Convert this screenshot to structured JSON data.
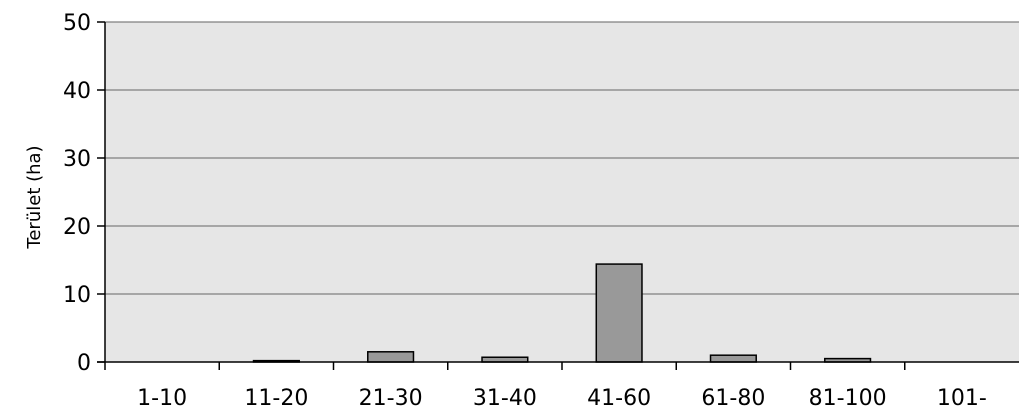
{
  "chart_data": {
    "type": "bar",
    "title": "",
    "xlabel": "",
    "ylabel": "Terület (ha)",
    "categories": [
      "1-10",
      "11-20",
      "21-30",
      "31-40",
      "41-60",
      "61-80",
      "81-100",
      "101-"
    ],
    "values": [
      0,
      0.2,
      1.5,
      0.7,
      14.4,
      1.0,
      0.5,
      0
    ],
    "ylim": [
      0,
      50
    ],
    "yticks": [
      0,
      10,
      20,
      30,
      40,
      50
    ],
    "grid": true,
    "legend": "none",
    "colors": {
      "plot_background": "#e6e6e6",
      "bar_fill": "#999999",
      "bar_stroke": "#000000",
      "gridline": "#808080"
    }
  }
}
